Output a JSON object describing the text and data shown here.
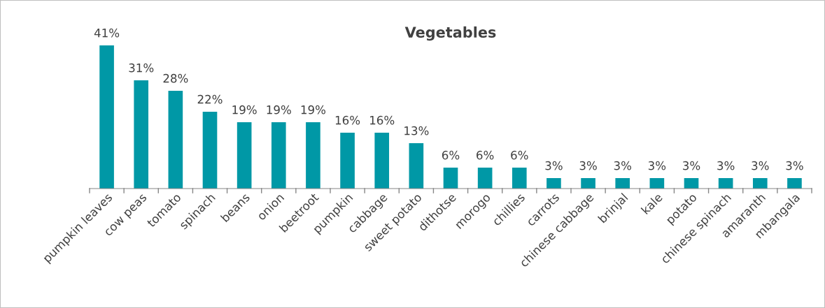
{
  "chart_data": {
    "type": "bar",
    "title": "Vegetables",
    "categories": [
      "pumpkin leaves",
      "cow peas",
      "tomato",
      "spinach",
      "beans",
      "onion",
      "beetroot",
      "pumpkin",
      "cabbage",
      "sweet potato",
      "dithotse",
      "morogo",
      "chillies",
      "carrots",
      "chinese cabbage",
      "brinjal",
      "kale",
      "potato",
      "chinese spinach",
      "amaranth",
      "mbangala"
    ],
    "values": [
      41,
      31,
      28,
      22,
      19,
      19,
      19,
      16,
      16,
      13,
      6,
      6,
      6,
      3,
      3,
      3,
      3,
      3,
      3,
      3,
      3
    ],
    "value_labels": [
      "41%",
      "31%",
      "28%",
      "22%",
      "19%",
      "19%",
      "19%",
      "16%",
      "16%",
      "13%",
      "6%",
      "6%",
      "6%",
      "3%",
      "3%",
      "3%",
      "3%",
      "3%",
      "3%",
      "3%",
      "3%"
    ],
    "color": "#0098a6",
    "grid": false,
    "legend": false
  }
}
